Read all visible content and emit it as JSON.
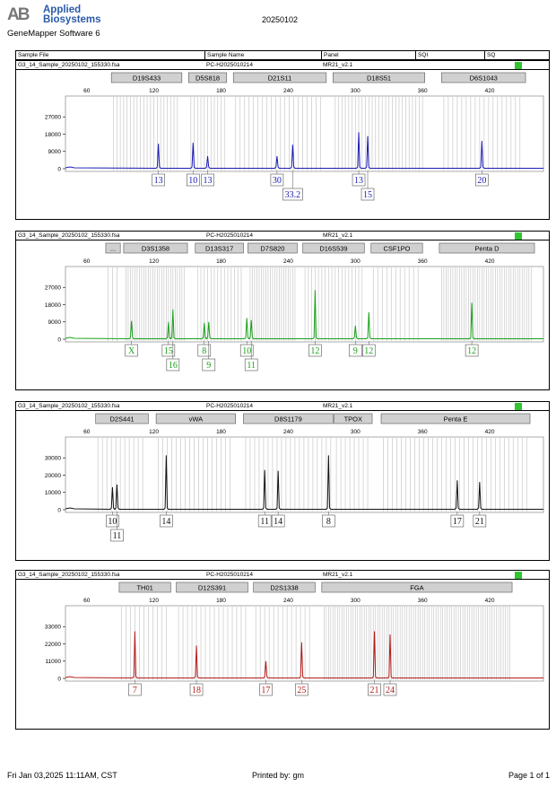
{
  "header": {
    "logo_mark": "AB",
    "logo_line1": "Applied",
    "logo_line2": "Biosystems",
    "software": "GeneMapper Software 6",
    "run_date": "20250102"
  },
  "columns": [
    "Sample File",
    "Sample Name",
    "Panel",
    "SQI",
    "SQ"
  ],
  "x_ticks": [
    60,
    120,
    180,
    240,
    300,
    360,
    420
  ],
  "panels": [
    {
      "file": "G3_14_Sample_20250102_155330.fsa",
      "name": "PC-H2025010214",
      "panel": "MR21_v2.1",
      "color": "#1a1ab4",
      "yticks": [
        0,
        9000,
        18000,
        27000
      ],
      "markers": [
        {
          "label": "D19S433",
          "lo": 82,
          "hi": 145
        },
        {
          "label": "D5S818",
          "lo": 151,
          "hi": 185
        },
        {
          "label": "D21S11",
          "lo": 191,
          "hi": 274
        },
        {
          "label": "D18S51",
          "lo": 280,
          "hi": 362
        },
        {
          "label": "D6S1043",
          "lo": 377,
          "hi": 452
        }
      ],
      "peaks": [
        {
          "bp": 124,
          "h": 13000,
          "allele": "13",
          "row": 0
        },
        {
          "bp": 155,
          "h": 13500,
          "allele": "10",
          "row": 0
        },
        {
          "bp": 168,
          "h": 6500,
          "allele": "13",
          "row": 0
        },
        {
          "bp": 230,
          "h": 6500,
          "allele": "30",
          "row": 0
        },
        {
          "bp": 244,
          "h": 12500,
          "allele": "33.2",
          "row": 1
        },
        {
          "bp": 303,
          "h": 19000,
          "allele": "13",
          "row": 0
        },
        {
          "bp": 311,
          "h": 17000,
          "allele": "15",
          "row": 1
        },
        {
          "bp": 413,
          "h": 14500,
          "allele": "20",
          "row": 0
        }
      ]
    },
    {
      "file": "G3_14_Sample_20250102_155330.fsa",
      "name": "PC-H2025010214",
      "panel": "MR21_v2.1",
      "color": "#19a019",
      "yticks": [
        0,
        9000,
        18000,
        27000
      ],
      "markers": [
        {
          "label": "...",
          "lo": 77,
          "hi": 90
        },
        {
          "label": "D3S1358",
          "lo": 93,
          "hi": 150
        },
        {
          "label": "D13S317",
          "lo": 157,
          "hi": 200
        },
        {
          "label": "D7S820",
          "lo": 204,
          "hi": 248
        },
        {
          "label": "D16S539",
          "lo": 253,
          "hi": 308
        },
        {
          "label": "CSF1PO",
          "lo": 314,
          "hi": 360
        },
        {
          "label": "Penta D",
          "lo": 375,
          "hi": 460
        }
      ],
      "peaks": [
        {
          "bp": 100,
          "h": 9500,
          "allele": "X",
          "row": 0
        },
        {
          "bp": 133,
          "h": 9000,
          "allele": "15",
          "row": 0
        },
        {
          "bp": 137,
          "h": 15500,
          "allele": "16",
          "row": 1
        },
        {
          "bp": 165,
          "h": 8500,
          "allele": "8",
          "row": 0
        },
        {
          "bp": 169,
          "h": 9000,
          "allele": "9",
          "row": 1
        },
        {
          "bp": 203,
          "h": 11000,
          "allele": "10",
          "row": 0
        },
        {
          "bp": 207,
          "h": 10000,
          "allele": "11",
          "row": 1
        },
        {
          "bp": 264,
          "h": 25500,
          "allele": "12",
          "row": 0
        },
        {
          "bp": 300,
          "h": 7000,
          "allele": "9",
          "row": 0
        },
        {
          "bp": 312,
          "h": 14000,
          "allele": "12",
          "row": 0
        },
        {
          "bp": 404,
          "h": 19000,
          "allele": "12",
          "row": 0
        }
      ]
    },
    {
      "file": "G3_14_Sample_20250102_155330.fsa",
      "name": "PC-H2025010214",
      "panel": "MR21_v2.1",
      "color": "#111111",
      "yticks": [
        0,
        10000,
        20000,
        30000
      ],
      "markers": [
        {
          "label": "D2S441",
          "lo": 68,
          "hi": 115
        },
        {
          "label": "vWA",
          "lo": 122,
          "hi": 193
        },
        {
          "label": "D8S1179",
          "lo": 200,
          "hi": 280
        },
        {
          "label": "TPOX",
          "lo": 281,
          "hi": 315
        },
        {
          "label": "Penta E",
          "lo": 323,
          "hi": 456
        }
      ],
      "peaks": [
        {
          "bp": 83,
          "h": 13000,
          "allele": "10",
          "row": 0
        },
        {
          "bp": 87,
          "h": 14500,
          "allele": "11",
          "row": 1
        },
        {
          "bp": 131,
          "h": 31500,
          "allele": "14",
          "row": 0
        },
        {
          "bp": 219,
          "h": 23000,
          "allele": "11",
          "row": 0
        },
        {
          "bp": 231,
          "h": 22500,
          "allele": "14",
          "row": 0
        },
        {
          "bp": 276,
          "h": 31500,
          "allele": "8",
          "row": 0
        },
        {
          "bp": 391,
          "h": 17000,
          "allele": "17",
          "row": 0
        },
        {
          "bp": 411,
          "h": 16000,
          "allele": "21",
          "row": 0
        }
      ]
    },
    {
      "file": "G3_14_Sample_20250102_155330.fsa",
      "name": "PC-H2025010214",
      "panel": "MR21_v2.1",
      "color": "#b41a1a",
      "yticks": [
        0,
        11000,
        22000,
        33000
      ],
      "markers": [
        {
          "label": "TH01",
          "lo": 89,
          "hi": 135
        },
        {
          "label": "D12S391",
          "lo": 140,
          "hi": 204
        },
        {
          "label": "D2S1338",
          "lo": 209,
          "hi": 264
        },
        {
          "label": "FGA",
          "lo": 270,
          "hi": 440
        }
      ],
      "peaks": [
        {
          "bp": 103,
          "h": 30000,
          "allele": "7",
          "row": 0
        },
        {
          "bp": 158,
          "h": 21000,
          "allele": "18",
          "row": 0
        },
        {
          "bp": 220,
          "h": 11000,
          "allele": "17",
          "row": 0
        },
        {
          "bp": 252,
          "h": 23000,
          "allele": "25",
          "row": 0
        },
        {
          "bp": 317,
          "h": 30000,
          "allele": "21",
          "row": 0
        },
        {
          "bp": 331,
          "h": 28000,
          "allele": "24",
          "row": 0
        }
      ]
    }
  ],
  "footer": {
    "left": "Fri Jan 03,2025 11:11AM, CST",
    "center": "Printed by: gm",
    "right": "Page 1 of 1"
  }
}
